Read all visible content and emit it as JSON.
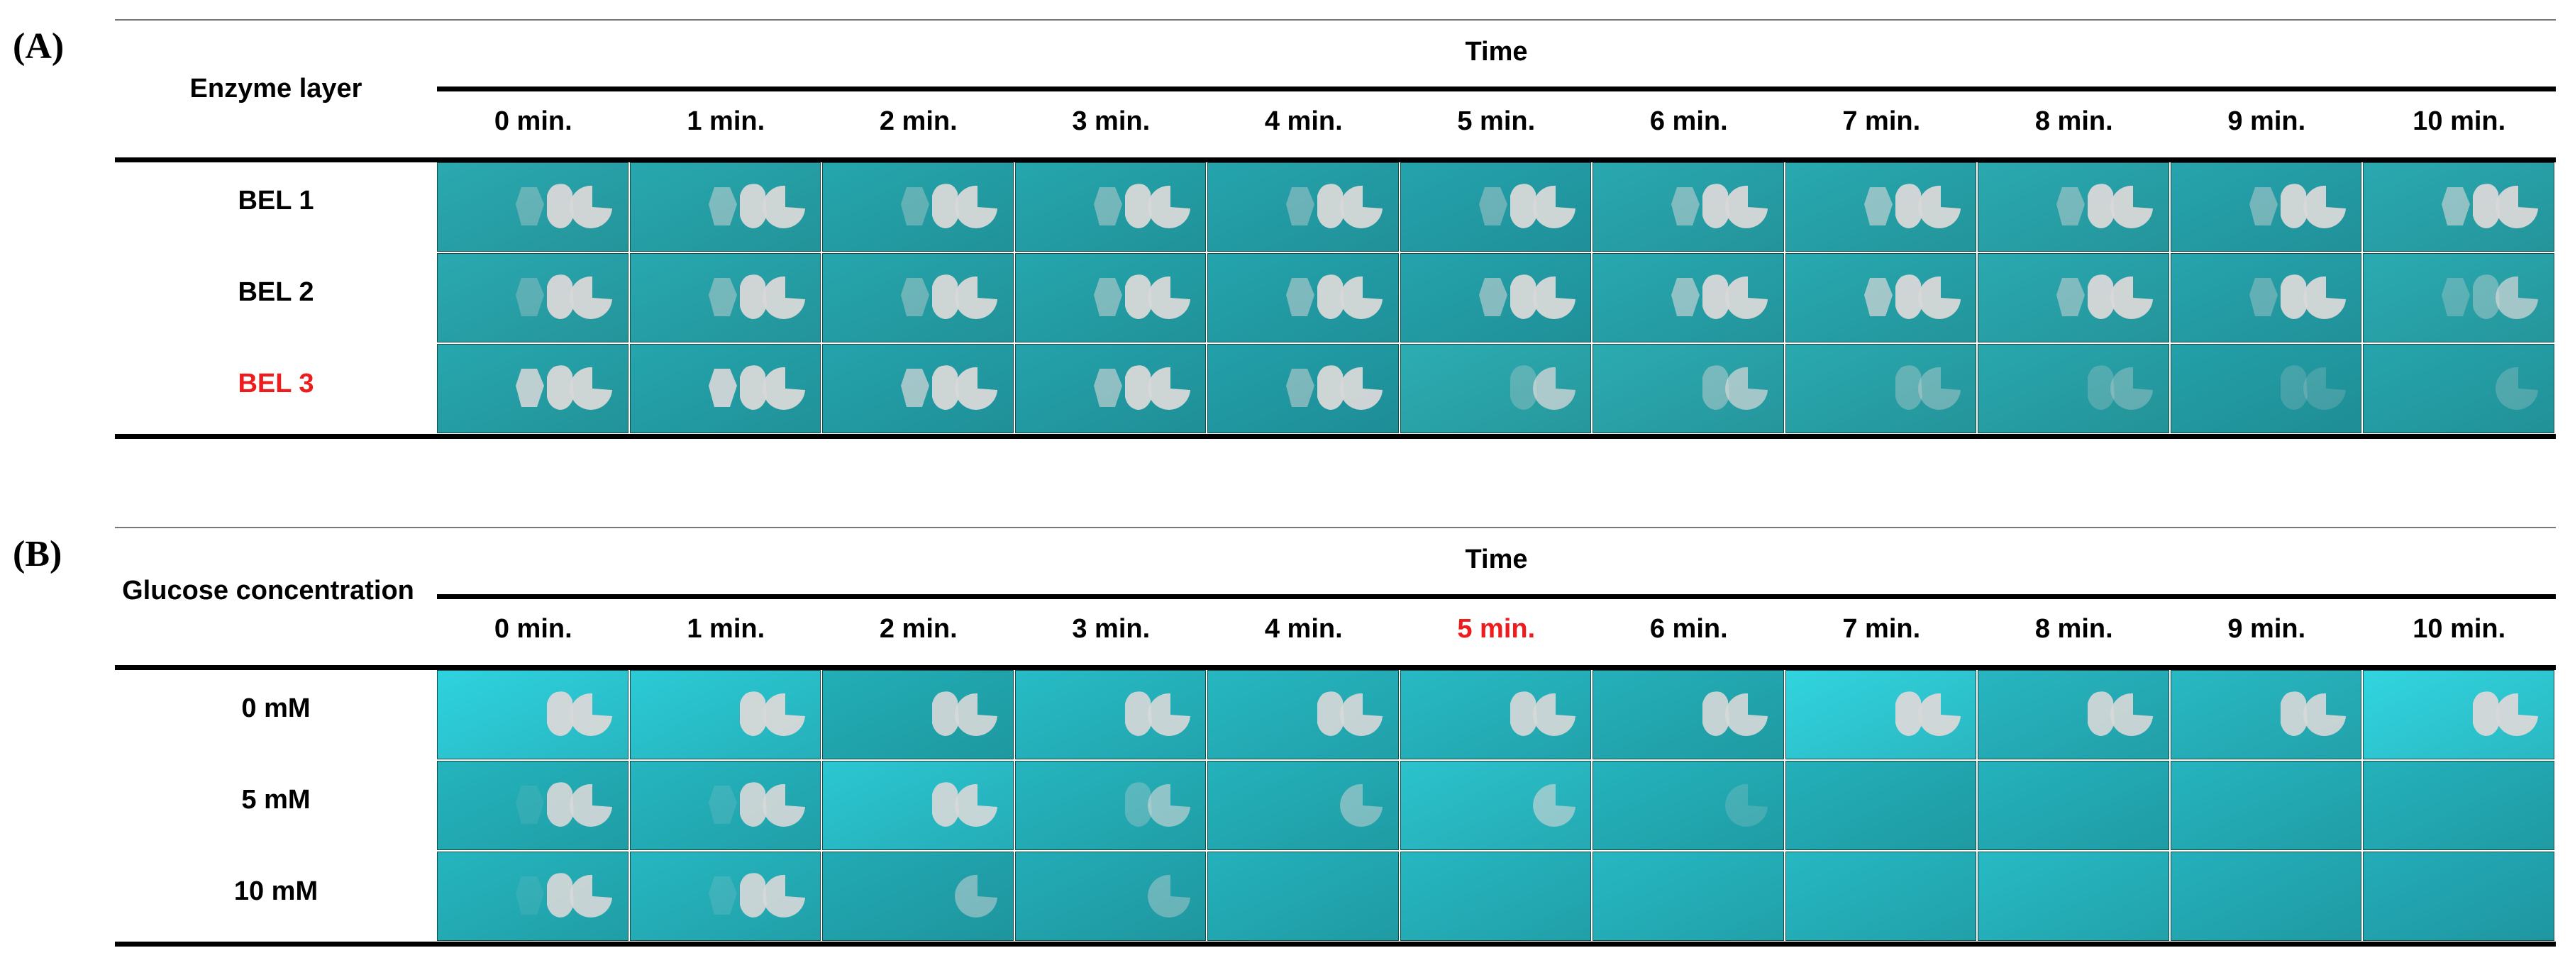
{
  "panels": [
    {
      "label": "(A)",
      "row_header": "Enzyme layer",
      "column_group": "Time",
      "columns": [
        "0 min.",
        "1 min.",
        "2 min.",
        "3 min.",
        "4 min.",
        "5 min.",
        "6 min.",
        "7 min.",
        "8 min.",
        "9 min.",
        "10 min."
      ],
      "highlight_column": null,
      "rows": [
        {
          "label": "BEL 1",
          "highlight": false,
          "shape_opacity": [
            [
              0.35,
              0.95,
              0.95
            ],
            [
              0.5,
              0.95,
              0.95
            ],
            [
              0.35,
              0.95,
              0.95
            ],
            [
              0.45,
              0.95,
              0.95
            ],
            [
              0.4,
              0.95,
              0.95
            ],
            [
              0.4,
              0.95,
              0.95
            ],
            [
              0.5,
              0.95,
              0.95
            ],
            [
              0.6,
              0.95,
              0.95
            ],
            [
              0.45,
              0.95,
              0.95
            ],
            [
              0.45,
              0.95,
              0.95
            ],
            [
              0.6,
              0.95,
              0.95
            ]
          ],
          "bg": [
            "#2aa9b0",
            "#27a8ae",
            "#25a6ad",
            "#25a6ad",
            "#25a4ad",
            "#24a3ad",
            "#29a8b0",
            "#28a9b0",
            "#2aa9b0",
            "#26a4ad",
            "#2aa9b0"
          ]
        },
        {
          "label": "BEL 2",
          "highlight": false,
          "shape_opacity": [
            [
              0.3,
              0.95,
              0.95
            ],
            [
              0.45,
              0.95,
              0.95
            ],
            [
              0.4,
              0.95,
              0.95
            ],
            [
              0.5,
              0.95,
              0.95
            ],
            [
              0.5,
              0.95,
              0.95
            ],
            [
              0.55,
              0.95,
              0.95
            ],
            [
              0.6,
              0.95,
              0.95
            ],
            [
              0.7,
              0.95,
              0.95
            ],
            [
              0.5,
              0.95,
              0.95
            ],
            [
              0.35,
              0.95,
              0.95
            ],
            [
              0.3,
              0.4,
              0.7
            ]
          ],
          "bg": [
            "#2aa9b0",
            "#28a8af",
            "#26a6ad",
            "#25a6ad",
            "#24a4ad",
            "#24a3ac",
            "#28a8b0",
            "#28a9b0",
            "#2aa9b0",
            "#26a4ad",
            "#2aabb1"
          ]
        },
        {
          "label": "BEL 3",
          "highlight": true,
          "shape_opacity": [
            [
              0.85,
              0.95,
              0.95
            ],
            [
              0.9,
              0.95,
              0.95
            ],
            [
              0.7,
              0.95,
              0.95
            ],
            [
              0.6,
              0.95,
              0.95
            ],
            [
              0.5,
              0.95,
              0.95
            ],
            [
              0.0,
              0.3,
              0.75
            ],
            [
              0.0,
              0.45,
              0.7
            ],
            [
              0.0,
              0.35,
              0.4
            ],
            [
              0.0,
              0.25,
              0.35
            ],
            [
              0.0,
              0.2,
              0.2
            ],
            [
              0.0,
              0.0,
              0.25
            ]
          ],
          "bg": [
            "#27a7ae",
            "#25a5ad",
            "#24a3ac",
            "#24a2ab",
            "#22a0aa",
            "#2cadb2",
            "#2babb1",
            "#29a9af",
            "#28a7ad",
            "#23a0a8",
            "#26a5ac"
          ]
        }
      ]
    },
    {
      "label": "(B)",
      "row_header": "Glucose concentration",
      "column_group": "Time",
      "columns": [
        "0 min.",
        "1 min.",
        "2 min.",
        "3 min.",
        "4 min.",
        "5 min.",
        "6 min.",
        "7 min.",
        "8 min.",
        "9 min.",
        "10 min."
      ],
      "highlight_column": 5,
      "rows": [
        {
          "label": "0 mM",
          "highlight": false,
          "shape_opacity": [
            [
              0.0,
              0.95,
              0.95
            ],
            [
              0.0,
              0.95,
              0.95
            ],
            [
              0.0,
              0.9,
              0.9
            ],
            [
              0.0,
              0.9,
              0.9
            ],
            [
              0.0,
              0.9,
              0.9
            ],
            [
              0.0,
              0.9,
              0.9
            ],
            [
              0.0,
              0.9,
              0.9
            ],
            [
              0.0,
              0.95,
              0.95
            ],
            [
              0.0,
              0.9,
              0.9
            ],
            [
              0.0,
              0.9,
              0.9
            ],
            [
              0.0,
              0.95,
              0.95
            ]
          ],
          "bg": [
            "#2ed3df",
            "#2bcbd6",
            "#22aeb6",
            "#27bcc6",
            "#26b7c1",
            "#27bac4",
            "#24b0b9",
            "#31d4df",
            "#27b6c0",
            "#28b9c3",
            "#31d5e0"
          ]
        },
        {
          "label": "5 mM",
          "highlight": false,
          "shape_opacity": [
            [
              0.1,
              0.9,
              0.9
            ],
            [
              0.15,
              0.9,
              0.9
            ],
            [
              0.0,
              0.9,
              0.9
            ],
            [
              0.0,
              0.3,
              0.6
            ],
            [
              0.0,
              0.0,
              0.5
            ],
            [
              0.0,
              0.0,
              0.6
            ],
            [
              0.0,
              0.0,
              0.2
            ],
            [
              0.0,
              0.0,
              0.0
            ],
            [
              0.0,
              0.0,
              0.0
            ],
            [
              0.0,
              0.0,
              0.0
            ],
            [
              0.0,
              0.0,
              0.0
            ]
          ],
          "bg": [
            "#24b4bd",
            "#25b6c0",
            "#2bc7d2",
            "#25b5be",
            "#24b2bb",
            "#2bc3cd",
            "#24b3bc",
            "#23b0b9",
            "#24b2bc",
            "#25b4be",
            "#24b1bb"
          ]
        },
        {
          "label": "10 mM",
          "highlight": false,
          "shape_opacity": [
            [
              0.1,
              0.9,
              0.9
            ],
            [
              0.15,
              0.9,
              0.9
            ],
            [
              0.0,
              0.0,
              0.5
            ],
            [
              0.0,
              0.0,
              0.4
            ],
            [
              0.0,
              0.0,
              0.0
            ],
            [
              0.0,
              0.0,
              0.0
            ],
            [
              0.0,
              0.0,
              0.0
            ],
            [
              0.0,
              0.0,
              0.0
            ],
            [
              0.0,
              0.0,
              0.0
            ],
            [
              0.0,
              0.0,
              0.0
            ],
            [
              0.0,
              0.0,
              0.0
            ]
          ],
          "bg": [
            "#25b5be",
            "#26b7c1",
            "#22aab4",
            "#23acb6",
            "#24b1bb",
            "#26b7c1",
            "#26b8c2",
            "#26b8c2",
            "#27bac4",
            "#24b0bb",
            "#23acb8"
          ]
        }
      ]
    }
  ],
  "colors": {
    "highlight": "#ee1c1c",
    "rule": "#000000",
    "shape": "#d8d8d8"
  }
}
